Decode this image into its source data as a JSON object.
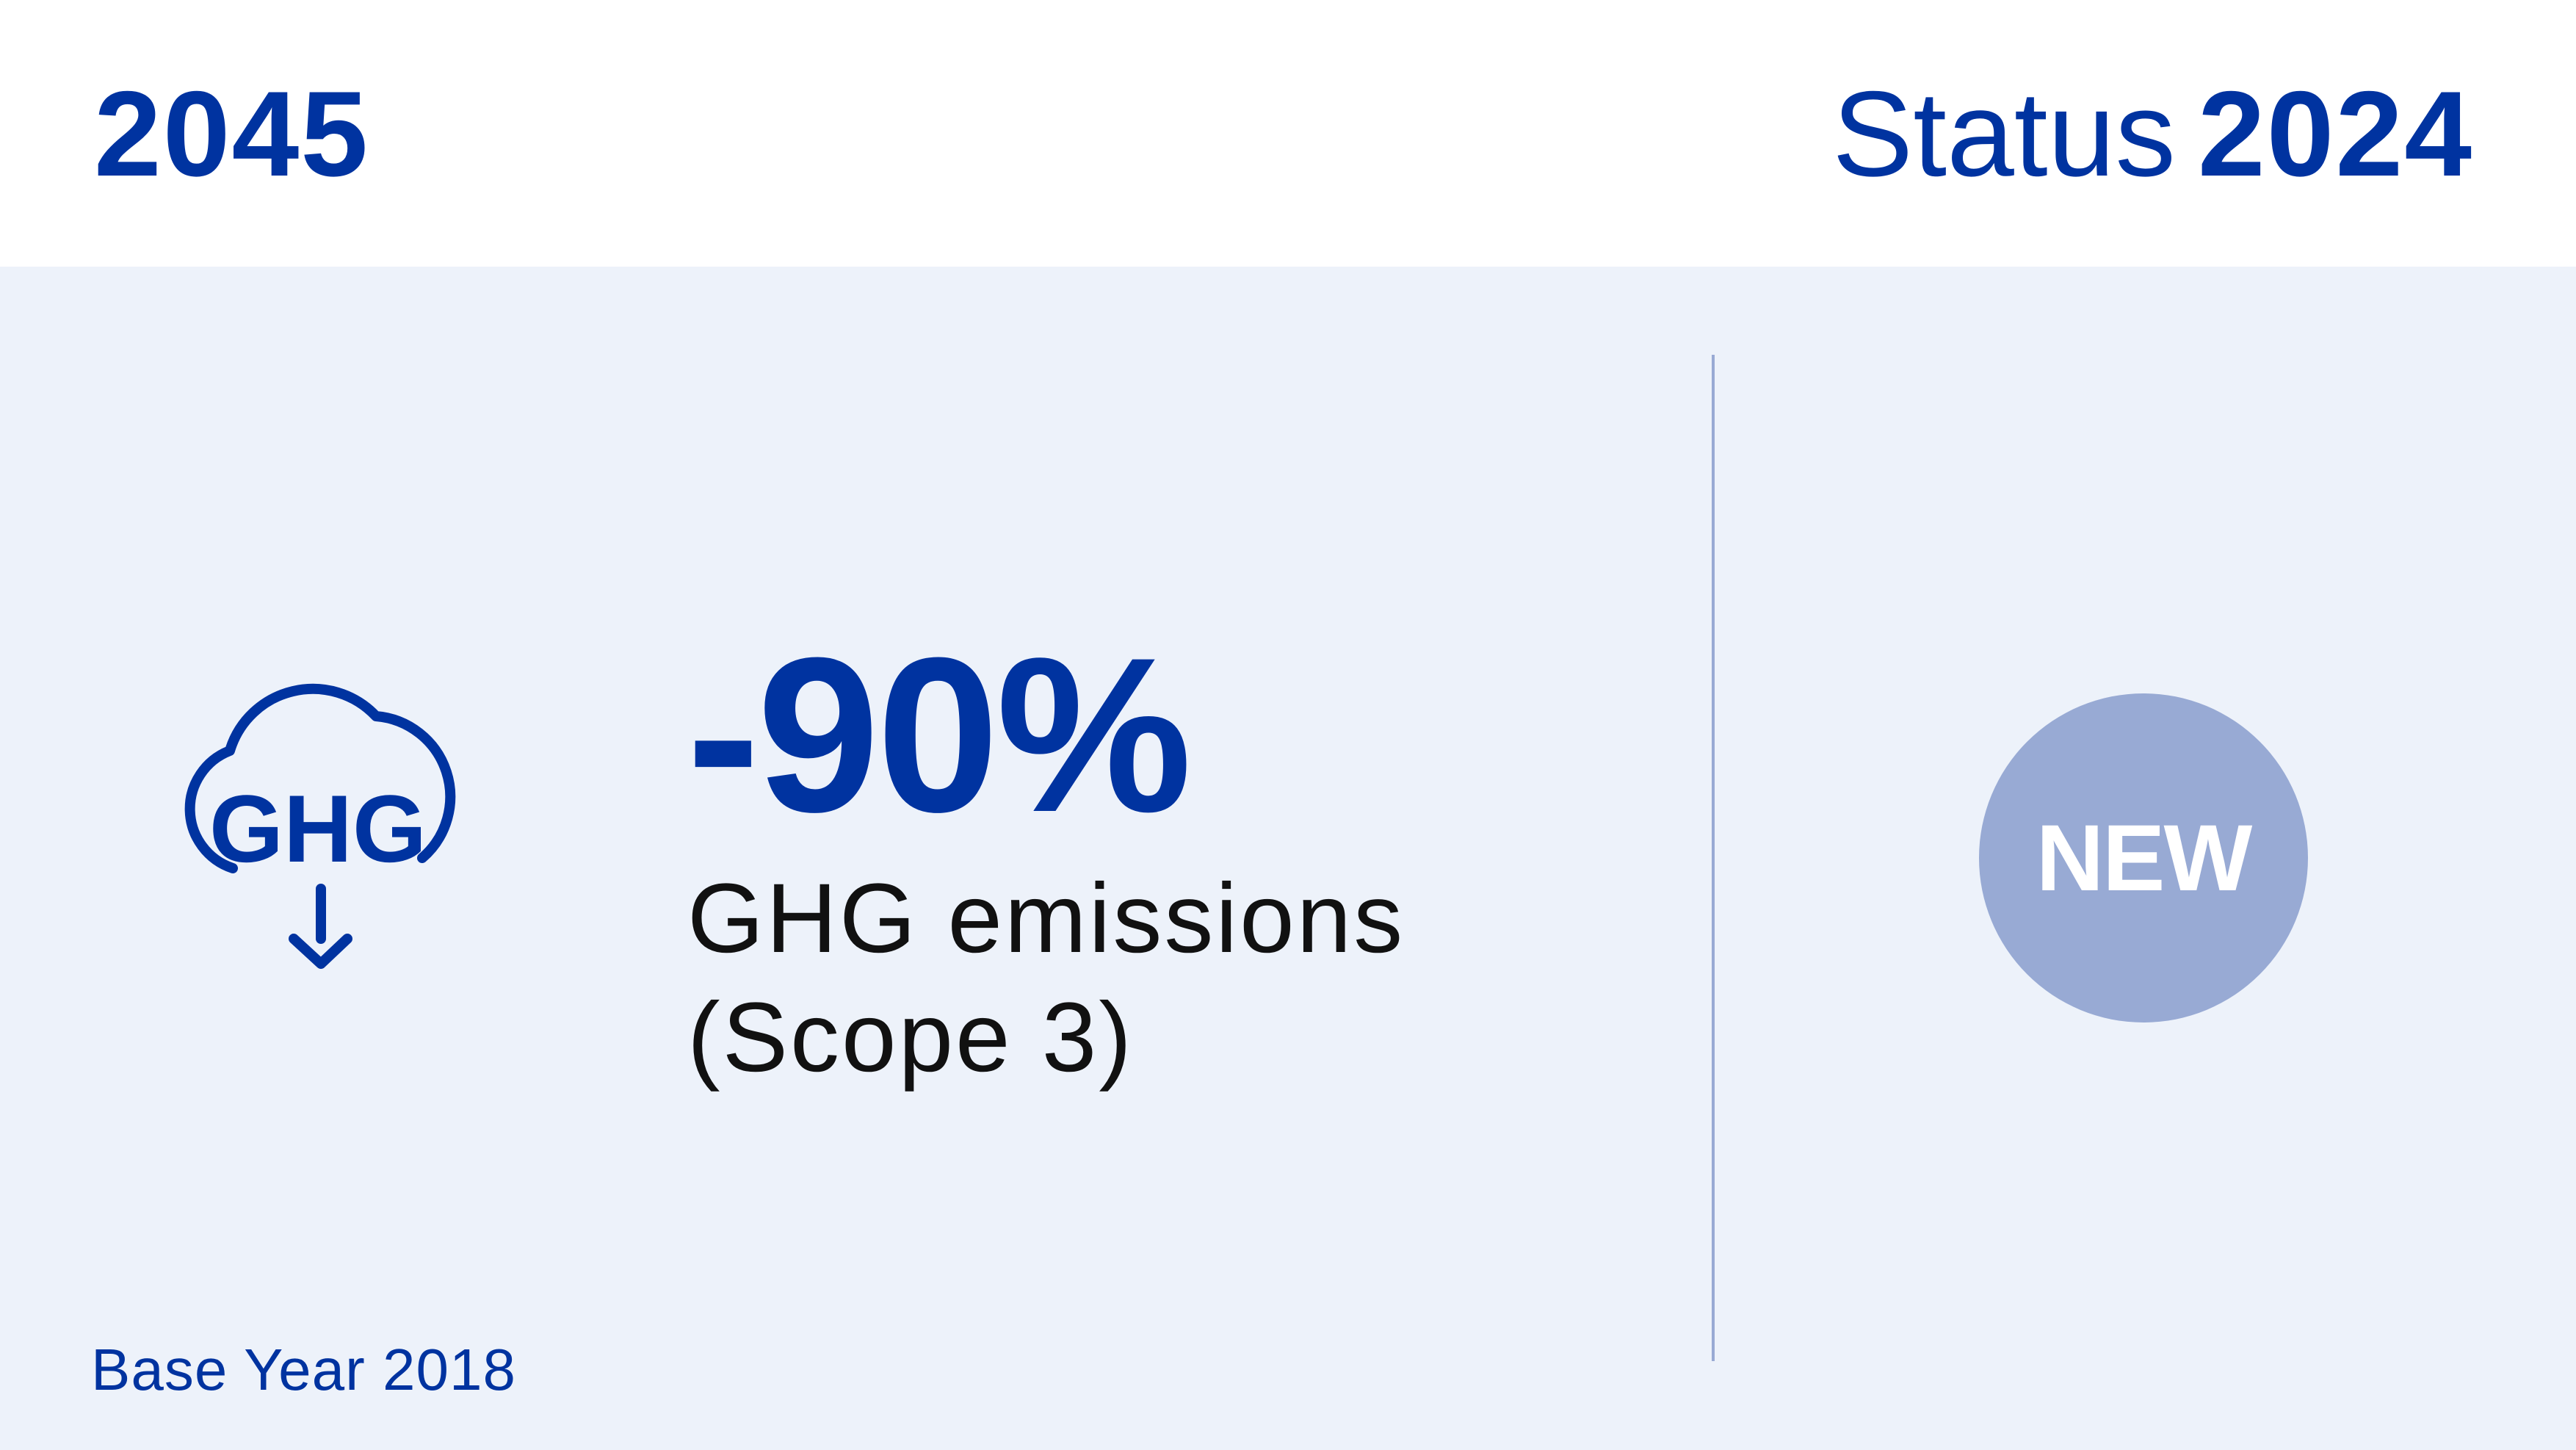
{
  "header": {
    "target_year": "2045",
    "status_label": "Status",
    "status_year": "2024"
  },
  "kpi": {
    "icon": "ghg-cloud-down-icon",
    "icon_text": "GHG",
    "value": "-90%",
    "description_line1": "GHG emissions",
    "description_line2": "(Scope 3)"
  },
  "status_badge": {
    "label": "NEW"
  },
  "footer": {
    "base_year": "Base Year 2018"
  },
  "colors": {
    "brand": "#0033a0",
    "background": "#edf2fa",
    "badge": "#98aad4",
    "divider": "#99aad4"
  }
}
